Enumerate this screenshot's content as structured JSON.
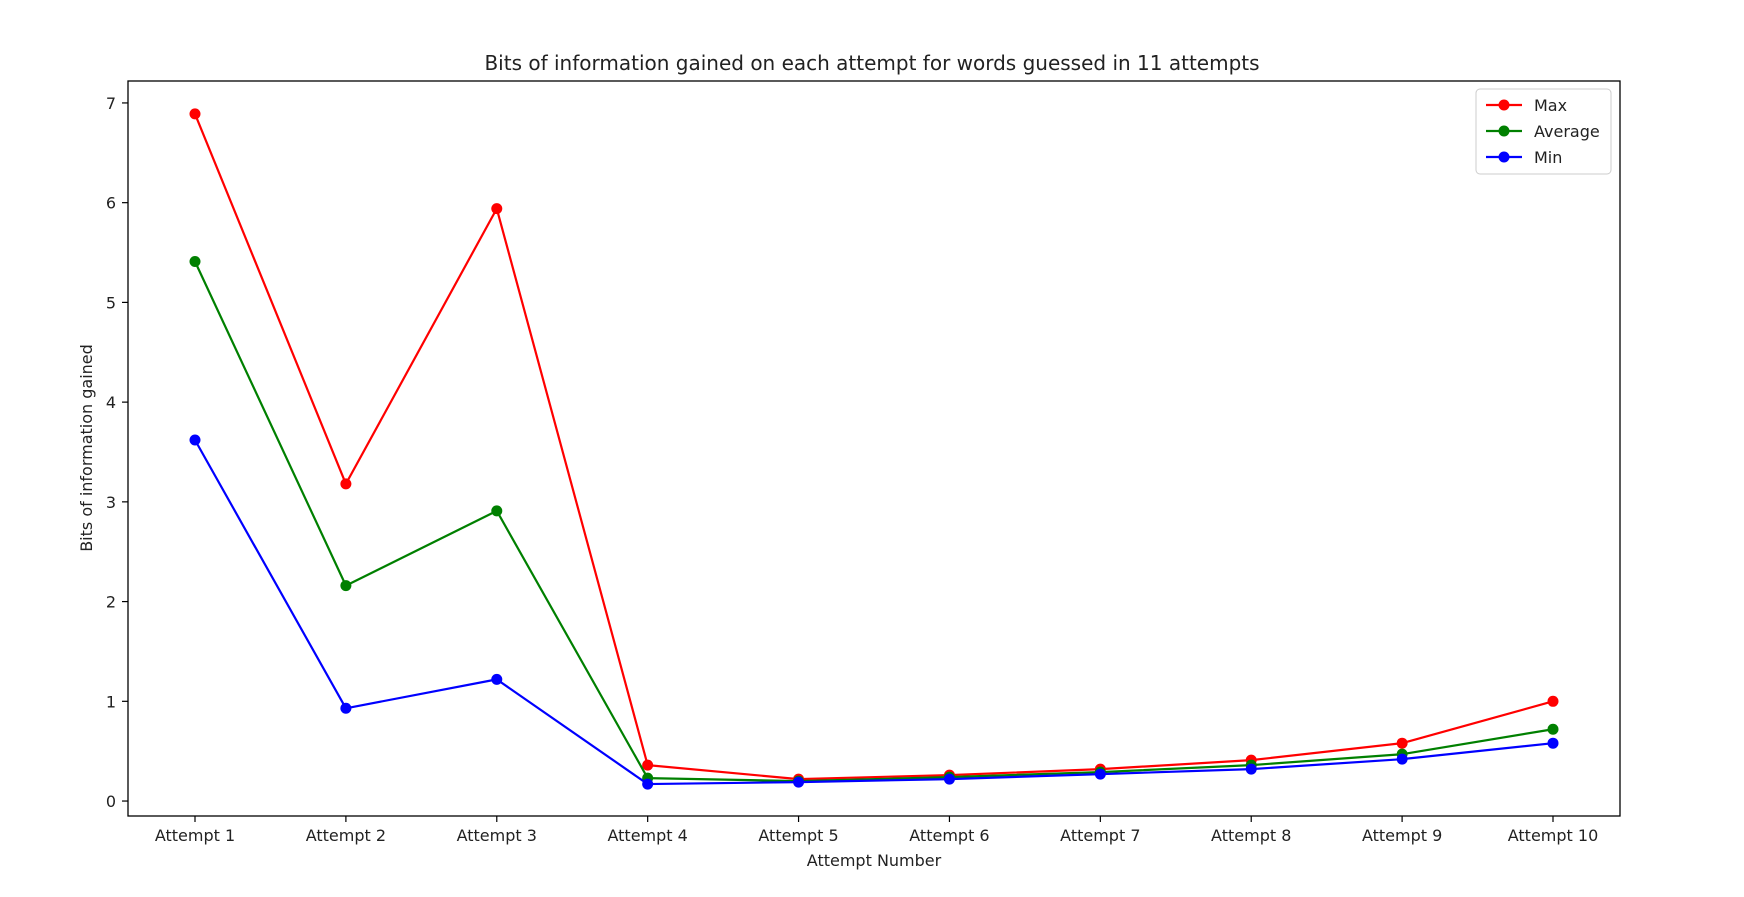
{
  "chart_data": {
    "type": "line",
    "title": "Bits of information gained on each attempt for words guessed in 11 attempts",
    "xlabel": "Attempt Number",
    "ylabel": "Bits of information gained",
    "categories": [
      "Attempt 1",
      "Attempt 2",
      "Attempt 3",
      "Attempt 4",
      "Attempt 5",
      "Attempt 6",
      "Attempt 7",
      "Attempt 8",
      "Attempt 9",
      "Attempt 10"
    ],
    "ylim": [
      -0.15,
      7.22
    ],
    "yticks": [
      0,
      1,
      2,
      3,
      4,
      5,
      6,
      7
    ],
    "grid": false,
    "legend_position": "top-right",
    "series": [
      {
        "name": "Max",
        "color": "#ff0000",
        "values": [
          6.89,
          3.18,
          5.94,
          0.36,
          0.22,
          0.26,
          0.32,
          0.41,
          0.58,
          1.0
        ]
      },
      {
        "name": "Average",
        "color": "#008000",
        "values": [
          5.41,
          2.16,
          2.91,
          0.23,
          0.2,
          0.24,
          0.29,
          0.36,
          0.47,
          0.72
        ]
      },
      {
        "name": "Min",
        "color": "#0000ff",
        "values": [
          3.62,
          0.93,
          1.22,
          0.17,
          0.19,
          0.22,
          0.27,
          0.32,
          0.42,
          0.58
        ]
      }
    ]
  }
}
